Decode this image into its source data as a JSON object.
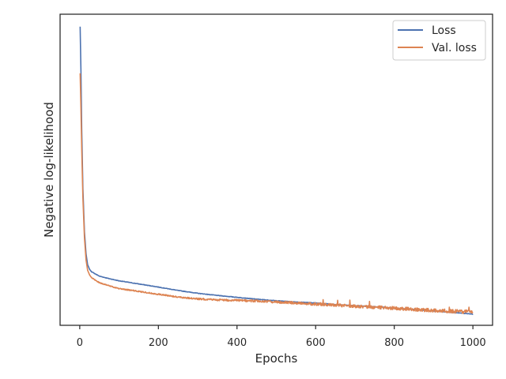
{
  "chart_data": {
    "type": "line",
    "xlabel": "Epochs",
    "ylabel": "Negative log-likelihood",
    "xlim": [
      -50,
      1050
    ],
    "ylim": [
      0,
      1
    ],
    "xticks": [
      0,
      200,
      400,
      600,
      800,
      1000
    ],
    "y_tick_labels_shown": false,
    "grid": false,
    "legend_position": "top-right",
    "series": [
      {
        "name": "Loss",
        "color": "#4c72b0",
        "x": [
          1,
          3,
          5,
          8,
          12,
          16,
          20,
          25,
          30,
          40,
          50,
          75,
          100,
          150,
          200,
          250,
          300,
          350,
          400,
          450,
          500,
          550,
          600,
          650,
          700,
          750,
          800,
          850,
          900,
          950,
          1000
        ],
        "y": [
          0.96,
          0.82,
          0.63,
          0.44,
          0.3,
          0.23,
          0.195,
          0.18,
          0.172,
          0.165,
          0.158,
          0.15,
          0.143,
          0.133,
          0.123,
          0.112,
          0.103,
          0.096,
          0.09,
          0.084,
          0.079,
          0.075,
          0.072,
          0.067,
          0.063,
          0.06,
          0.055,
          0.051,
          0.046,
          0.041,
          0.036
        ]
      },
      {
        "name": "Val. loss",
        "color": "#dd8452",
        "x": [
          1,
          3,
          5,
          8,
          12,
          16,
          20,
          25,
          30,
          40,
          50,
          75,
          100,
          150,
          200,
          250,
          300,
          350,
          400,
          450,
          500,
          550,
          600,
          650,
          700,
          750,
          800,
          850,
          900,
          950,
          1000
        ],
        "y": [
          0.81,
          0.7,
          0.57,
          0.41,
          0.28,
          0.21,
          0.177,
          0.162,
          0.153,
          0.145,
          0.137,
          0.127,
          0.118,
          0.109,
          0.1,
          0.091,
          0.085,
          0.082,
          0.08,
          0.078,
          0.075,
          0.072,
          0.068,
          0.065,
          0.061,
          0.058,
          0.055,
          0.051,
          0.048,
          0.045,
          0.043
        ]
      }
    ]
  }
}
